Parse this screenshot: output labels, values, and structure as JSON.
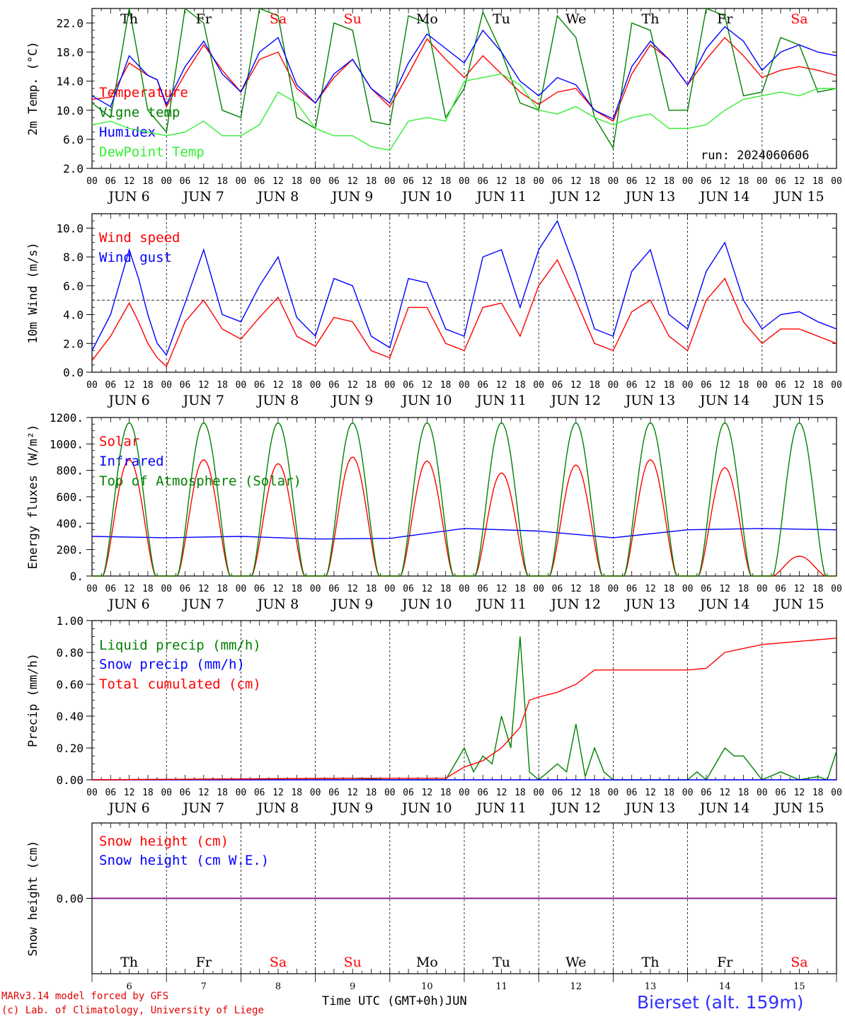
{
  "footer": {
    "credit_line1": "MARv3.14 model forced by GFS",
    "credit_line2": "(c) Lab. of Climatology, University of Liege",
    "time_axis_label": "Time UTC (GMT+0h)",
    "month_label": "JUN",
    "station": "Bierset (alt. 159m)"
  },
  "run_label": "run: 2024060606",
  "days": {
    "names": [
      "Th",
      "Fr",
      "Sa",
      "Su",
      "Mo",
      "Tu",
      "We",
      "Th",
      "Fr",
      "Sa"
    ],
    "weekend": [
      false,
      false,
      true,
      true,
      false,
      false,
      false,
      false,
      false,
      true
    ],
    "dates": [
      "JUN  6",
      "JUN  7",
      "JUN  8",
      "JUN  9",
      "JUN 10",
      "JUN 11",
      "JUN 12",
      "JUN 13",
      "JUN 14",
      "JUN 15"
    ],
    "numbers": [
      "6",
      "7",
      "8",
      "9",
      "10",
      "11",
      "12",
      "13",
      "14",
      "15"
    ],
    "hour_ticks": [
      "00",
      "06",
      "12",
      "18"
    ],
    "end_tick": "00"
  },
  "colors": {
    "red": "#ff0000",
    "green": "#008000",
    "blue": "#0000ff",
    "lightgreen": "#33ee33",
    "purple": "#800080",
    "weekend": "#ff0000"
  },
  "chart_data": [
    {
      "type": "line",
      "ylabel": "2m Temp. (°C)",
      "ylim": [
        2,
        24
      ],
      "yticks": [
        "2.0",
        "6.0",
        "10.0",
        "14.0",
        "18.0",
        "22.0"
      ],
      "grid": "dashed day separators",
      "x_unit": "hours since JUN 6 00 UTC",
      "series": [
        {
          "name": "Temperature",
          "color": "red",
          "x": [
            0,
            6,
            12,
            18,
            21,
            24,
            30,
            36,
            42,
            48,
            54,
            60,
            66,
            72,
            78,
            84,
            90,
            96,
            102,
            108,
            114,
            120,
            126,
            132,
            138,
            144,
            150,
            156,
            162,
            168,
            174,
            180,
            186,
            192,
            198,
            204,
            210,
            216,
            222,
            228,
            234,
            240
          ],
          "y": [
            11.5,
            11.8,
            16.5,
            14.8,
            14.2,
            10.5,
            15.0,
            19.0,
            15.5,
            12.5,
            17.0,
            18.0,
            13.0,
            11.0,
            14.5,
            17.0,
            13.0,
            10.5,
            15.0,
            19.8,
            17.0,
            14.5,
            17.5,
            15.0,
            12.5,
            10.8,
            12.5,
            13.0,
            10.0,
            8.5,
            15.0,
            19.0,
            17.0,
            13.5,
            17.0,
            20.0,
            17.5,
            14.5,
            15.5,
            16.0,
            15.5,
            14.8
          ]
        },
        {
          "name": "Vigne temp",
          "color": "green",
          "x": [
            0,
            6,
            12,
            18,
            24,
            30,
            36,
            42,
            48,
            54,
            60,
            66,
            72,
            78,
            84,
            90,
            96,
            102,
            108,
            114,
            120,
            126,
            132,
            138,
            144,
            150,
            156,
            162,
            168,
            174,
            180,
            186,
            192,
            198,
            204,
            210,
            216,
            222,
            228,
            234,
            240
          ],
          "y": [
            11.0,
            9.0,
            24.0,
            10.0,
            7.0,
            24.0,
            22.0,
            10.0,
            9.0,
            24.0,
            23.0,
            9.0,
            7.5,
            22.0,
            21.0,
            8.5,
            8.0,
            23.0,
            22.0,
            9.0,
            13.0,
            23.5,
            18.0,
            11.0,
            10.0,
            23.0,
            20.0,
            9.0,
            4.8,
            22.0,
            21.0,
            10.0,
            10.0,
            24.0,
            23.0,
            12.0,
            12.5,
            20.0,
            19.0,
            12.5,
            13.0
          ]
        },
        {
          "name": "Humidex",
          "color": "blue",
          "x": [
            0,
            6,
            12,
            18,
            21,
            24,
            30,
            36,
            42,
            48,
            54,
            60,
            66,
            72,
            78,
            84,
            90,
            96,
            102,
            108,
            114,
            120,
            126,
            132,
            138,
            144,
            150,
            156,
            162,
            168,
            174,
            180,
            186,
            192,
            198,
            204,
            210,
            216,
            222,
            228,
            234,
            240
          ],
          "y": [
            12.0,
            10.5,
            17.5,
            14.8,
            14.2,
            10.8,
            16.0,
            19.5,
            15.0,
            12.5,
            18.0,
            20.0,
            13.5,
            11.0,
            15.0,
            17.0,
            13.0,
            11.0,
            16.5,
            20.5,
            18.5,
            16.5,
            21.0,
            18.0,
            14.0,
            12.0,
            14.5,
            13.5,
            10.0,
            8.8,
            16.0,
            19.5,
            17.0,
            13.5,
            18.5,
            21.5,
            19.5,
            15.5,
            18.0,
            19.0,
            18.0,
            17.5
          ]
        },
        {
          "name": "DewPoint Temp",
          "color": "lightgreen",
          "x": [
            0,
            6,
            12,
            18,
            24,
            30,
            36,
            42,
            48,
            54,
            60,
            66,
            72,
            78,
            84,
            90,
            96,
            102,
            108,
            114,
            120,
            126,
            132,
            138,
            144,
            150,
            156,
            162,
            168,
            174,
            180,
            186,
            192,
            198,
            204,
            210,
            216,
            222,
            228,
            234,
            240
          ],
          "y": [
            8.0,
            8.5,
            7.5,
            7.0,
            6.5,
            7.0,
            8.5,
            6.5,
            6.5,
            8.0,
            12.5,
            11.0,
            7.5,
            6.5,
            6.5,
            5.0,
            4.5,
            8.5,
            9.0,
            8.5,
            14.0,
            14.5,
            15.0,
            13.5,
            10.0,
            9.5,
            10.5,
            9.0,
            8.0,
            9.0,
            9.5,
            7.5,
            7.5,
            8.0,
            10.0,
            11.5,
            12.0,
            12.5,
            12.0,
            13.0,
            13.0
          ]
        }
      ]
    },
    {
      "type": "line",
      "ylabel": "10m Wind (m/s)",
      "ylim": [
        0,
        11
      ],
      "yticks": [
        "0.0",
        "2.0",
        "4.0",
        "6.0",
        "8.0",
        "10.0"
      ],
      "reference_line": 5,
      "series": [
        {
          "name": "Wind speed",
          "color": "red",
          "x": [
            0,
            6,
            12,
            15,
            18,
            21,
            24,
            30,
            36,
            42,
            48,
            54,
            60,
            66,
            72,
            78,
            84,
            90,
            96,
            102,
            108,
            114,
            120,
            126,
            132,
            138,
            144,
            150,
            156,
            162,
            168,
            174,
            180,
            186,
            192,
            198,
            204,
            210,
            216,
            222,
            228,
            234,
            240
          ],
          "y": [
            0.8,
            2.5,
            4.8,
            3.5,
            2.0,
            1.0,
            0.4,
            3.5,
            5.0,
            3.0,
            2.3,
            3.8,
            5.2,
            2.5,
            1.8,
            3.8,
            3.5,
            1.5,
            1.0,
            4.5,
            4.5,
            2.0,
            1.5,
            4.5,
            4.8,
            2.5,
            6.0,
            7.8,
            5.0,
            2.0,
            1.5,
            4.2,
            5.0,
            2.5,
            1.5,
            5.0,
            6.5,
            3.5,
            2.0,
            3.0,
            3.0,
            2.5,
            2.0
          ]
        },
        {
          "name": "Wind gust",
          "color": "blue",
          "x": [
            0,
            6,
            12,
            15,
            18,
            21,
            24,
            30,
            36,
            42,
            48,
            54,
            60,
            66,
            72,
            78,
            84,
            90,
            96,
            102,
            108,
            114,
            120,
            126,
            132,
            138,
            144,
            150,
            156,
            162,
            168,
            174,
            180,
            186,
            192,
            198,
            204,
            210,
            216,
            222,
            228,
            234,
            240
          ],
          "y": [
            1.5,
            4.0,
            8.5,
            6.5,
            4.0,
            2.0,
            1.2,
            4.8,
            8.5,
            4.0,
            3.5,
            6.0,
            8.0,
            3.8,
            2.5,
            6.5,
            6.0,
            2.5,
            1.7,
            6.5,
            6.2,
            3.0,
            2.5,
            8.0,
            8.5,
            4.5,
            8.5,
            10.5,
            7.0,
            3.0,
            2.5,
            7.0,
            8.5,
            4.0,
            3.0,
            7.0,
            9.0,
            5.0,
            3.0,
            4.0,
            4.2,
            3.5,
            3.0
          ]
        }
      ]
    },
    {
      "type": "line",
      "ylabel": "Energy fluxes (W/m²)",
      "ylim": [
        0,
        1200
      ],
      "yticks": [
        "0.",
        "200.",
        "400.",
        "600.",
        "800.",
        "1000.",
        "1200."
      ],
      "series": [
        {
          "name": "Solar",
          "color": "red",
          "daily_peak": [
            880,
            880,
            850,
            900,
            870,
            780,
            840,
            880,
            820,
            150
          ]
        },
        {
          "name": "Infrared",
          "color": "blue",
          "x": [
            0,
            24,
            48,
            72,
            96,
            120,
            144,
            168,
            192,
            216,
            240
          ],
          "y": [
            300,
            290,
            300,
            280,
            285,
            360,
            340,
            290,
            350,
            360,
            350
          ]
        },
        {
          "name": "Top of Atmosphere (Solar)",
          "color": "green",
          "daily_peak": 1160
        }
      ]
    },
    {
      "type": "line",
      "ylabel": "Precip (mm/h)",
      "ylim": [
        0,
        1.0
      ],
      "yticks": [
        "0.00",
        "0.20",
        "0.40",
        "0.60",
        "0.80",
        "1.00"
      ],
      "series": [
        {
          "name": "Liquid precip (mm/h)",
          "color": "green",
          "x": [
            0,
            84,
            96,
            114,
            117,
            120,
            123,
            126,
            129,
            132,
            135,
            138,
            141,
            144,
            147,
            150,
            153,
            156,
            159,
            162,
            165,
            168,
            192,
            195,
            198,
            204,
            207,
            210,
            216,
            222,
            228,
            234,
            237,
            240
          ],
          "y": [
            0,
            0.01,
            0,
            0,
            0.1,
            0.2,
            0.05,
            0.15,
            0.1,
            0.4,
            0.2,
            0.9,
            0.05,
            0,
            0.05,
            0.1,
            0.05,
            0.35,
            0.02,
            0.2,
            0.05,
            0,
            0,
            0.05,
            0,
            0.2,
            0.15,
            0.15,
            0,
            0.05,
            0,
            0.02,
            0,
            0.18
          ]
        },
        {
          "name": "Snow precip (mm/h)",
          "color": "blue",
          "x": [
            0,
            240
          ],
          "y": [
            0,
            0
          ]
        },
        {
          "name": "Total cumulated (cm)",
          "color": "red",
          "x": [
            0,
            84,
            114,
            120,
            126,
            132,
            138,
            141,
            144,
            150,
            156,
            162,
            168,
            192,
            198,
            204,
            216,
            228,
            240
          ],
          "y": [
            0,
            0.01,
            0.01,
            0.08,
            0.12,
            0.2,
            0.33,
            0.5,
            0.52,
            0.55,
            0.6,
            0.69,
            0.69,
            0.69,
            0.7,
            0.8,
            0.85,
            0.87,
            0.89
          ]
        }
      ]
    },
    {
      "type": "line",
      "ylabel": "Snow height (cm)",
      "yticks": [
        "0.00"
      ],
      "series": [
        {
          "name": "Snow height (cm)",
          "color": "red",
          "x": [
            0,
            240
          ],
          "y": [
            0,
            0
          ]
        },
        {
          "name": "Snow height (cm W.E.)",
          "color": "blue",
          "x": [
            0,
            240
          ],
          "y": [
            0,
            0
          ]
        }
      ]
    }
  ]
}
